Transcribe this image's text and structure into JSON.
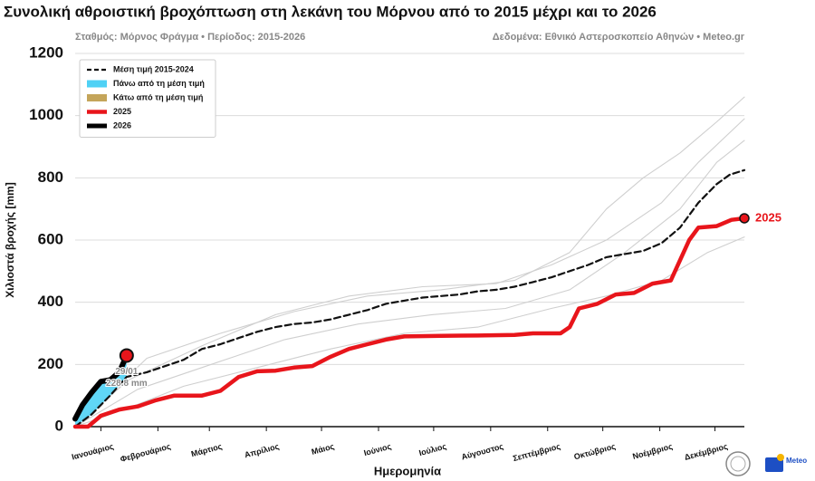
{
  "chart_data": {
    "type": "line",
    "title": "Συνολική αθροιστική βροχόπτωση στη λεκάνη του Μόρνου από το 2015 μέχρι και το 2026",
    "subtitle_left": "Σταθμός: Μόρνος Φράγμα • Περίοδος: 2015-2026",
    "subtitle_right": "Δεδομένα: Εθνικό Αστεροσκοπείο Αθηνών • Meteo.gr",
    "x_label": "Ημερομηνία",
    "y_label": "Χιλιοστά βροχής [mm]",
    "xlim": [
      1,
      365
    ],
    "ylim": [
      0,
      1200
    ],
    "xticks": [
      {
        "value": 15,
        "label": "Ιανουάριος"
      },
      {
        "value": 46,
        "label": "Φεβρουάριος"
      },
      {
        "value": 74,
        "label": "Μάρτιος"
      },
      {
        "value": 105,
        "label": "Απρίλιος"
      },
      {
        "value": 135,
        "label": "Μάιος"
      },
      {
        "value": 166,
        "label": "Ιούνιος"
      },
      {
        "value": 196,
        "label": "Ιούλιος"
      },
      {
        "value": 227,
        "label": "Αύγουστος"
      },
      {
        "value": 258,
        "label": "Σεπτέμβριος"
      },
      {
        "value": 288,
        "label": "Οκτώβριος"
      },
      {
        "value": 319,
        "label": "Νοέμβριος"
      },
      {
        "value": 349,
        "label": "Δεκέμβριος"
      }
    ],
    "yticks": [
      0,
      200,
      400,
      600,
      800,
      1000,
      1200
    ],
    "grid": true,
    "legend": "upper left",
    "series": [
      {
        "name": "Μέση τιμή 2015-2024",
        "color": "#111111",
        "style": "dashed",
        "x": [
          1,
          10,
          20,
          29,
          40,
          50,
          60,
          70,
          80,
          90,
          100,
          110,
          120,
          130,
          140,
          150,
          160,
          170,
          180,
          190,
          200,
          210,
          220,
          230,
          240,
          250,
          260,
          270,
          280,
          290,
          300,
          310,
          320,
          330,
          340,
          350,
          357,
          365
        ],
        "values": [
          0,
          40,
          100,
          160,
          175,
          195,
          215,
          250,
          265,
          285,
          305,
          320,
          330,
          335,
          345,
          360,
          375,
          395,
          405,
          415,
          420,
          425,
          435,
          440,
          450,
          465,
          480,
          500,
          520,
          545,
          555,
          565,
          590,
          640,
          720,
          780,
          810,
          825
        ]
      },
      {
        "name": "2025",
        "color": "#e8151b",
        "style": "solid",
        "x": [
          1,
          8,
          15,
          25,
          35,
          45,
          55,
          70,
          80,
          90,
          100,
          110,
          120,
          130,
          140,
          150,
          160,
          170,
          180,
          200,
          220,
          240,
          250,
          265,
          270,
          275,
          285,
          295,
          305,
          315,
          325,
          335,
          340,
          350,
          358,
          365
        ],
        "values": [
          0,
          0,
          35,
          55,
          65,
          85,
          100,
          100,
          115,
          160,
          178,
          180,
          190,
          195,
          225,
          250,
          265,
          280,
          290,
          292,
          293,
          295,
          300,
          300,
          320,
          380,
          395,
          425,
          430,
          460,
          470,
          600,
          640,
          645,
          665,
          670
        ]
      },
      {
        "name": "2026",
        "color": "#000000",
        "style": "thick",
        "x": [
          1,
          5,
          10,
          15,
          20,
          25,
          29
        ],
        "values": [
          25,
          70,
          110,
          145,
          150,
          175,
          228.8
        ]
      },
      {
        "color": "#cfcfcf",
        "style": "thin",
        "x": [
          1,
          40,
          80,
          120,
          160,
          200,
          240,
          270,
          290,
          310,
          330,
          350,
          365
        ],
        "values": [
          0,
          220,
          300,
          370,
          420,
          440,
          470,
          560,
          700,
          800,
          880,
          980,
          1060
        ]
      },
      {
        "color": "#cfcfcf",
        "style": "thin",
        "x": [
          1,
          30,
          70,
          110,
          150,
          190,
          230,
          260,
          290,
          320,
          340,
          365
        ],
        "values": [
          0,
          150,
          260,
          360,
          420,
          450,
          460,
          520,
          600,
          720,
          850,
          990
        ]
      },
      {
        "color": "#cfcfcf",
        "style": "thin",
        "x": [
          1,
          35,
          75,
          115,
          155,
          195,
          235,
          270,
          300,
          330,
          350,
          365
        ],
        "values": [
          0,
          120,
          200,
          280,
          330,
          360,
          380,
          440,
          560,
          700,
          850,
          920
        ]
      },
      {
        "color": "#cfcfcf",
        "style": "thin",
        "x": [
          1,
          30,
          60,
          100,
          140,
          180,
          220,
          260,
          290,
          320,
          345,
          365
        ],
        "values": [
          0,
          60,
          130,
          190,
          250,
          300,
          320,
          380,
          420,
          470,
          560,
          610
        ]
      }
    ],
    "fills": [
      {
        "name": "Πάνω από τη μέση τιμή",
        "color": "#4fd1f5"
      },
      {
        "name": "Κάτω από τη μέση τιμή",
        "color": "#c4a55a"
      }
    ],
    "annotation": {
      "x": 29,
      "y": 228.8,
      "lines": [
        "29/01",
        "228.8 mm"
      ],
      "color": "#e8151b"
    },
    "logo_text": "Meteo"
  }
}
